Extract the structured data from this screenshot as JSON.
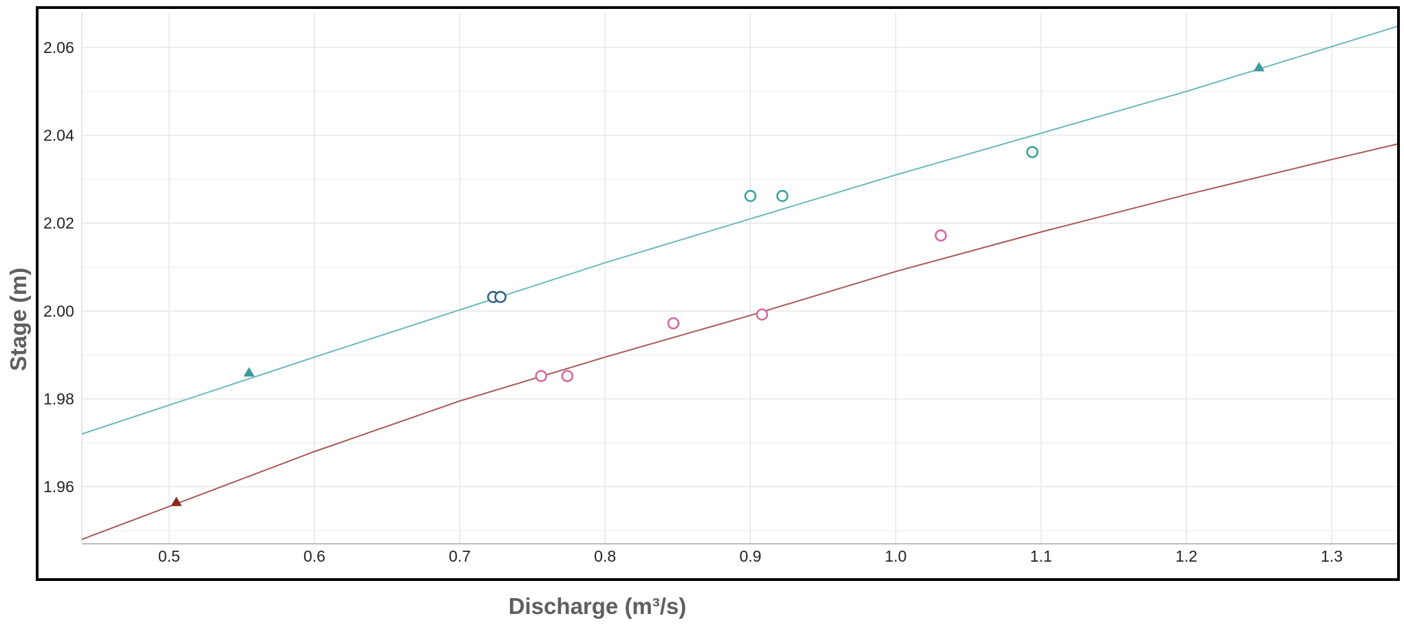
{
  "chart_data": {
    "type": "scatter",
    "xlabel": "Discharge (m³/s)",
    "ylabel": "Stage (m)",
    "xlim": [
      0.44,
      1.345
    ],
    "ylim": [
      1.947,
      2.068
    ],
    "x_ticks": [
      0.5,
      0.6,
      0.7,
      0.8,
      0.9,
      1.0,
      1.1,
      1.2,
      1.3
    ],
    "x_tick_labels": [
      "0.5",
      "0.6",
      "0.7",
      "0.8",
      "0.9",
      "1.0",
      "1.1",
      "1.2",
      "1.3"
    ],
    "y_ticks": [
      1.96,
      1.98,
      2.0,
      2.02,
      2.04,
      2.06
    ],
    "y_tick_labels": [
      "1.96",
      "1.98",
      "2.00",
      "2.02",
      "2.04",
      "2.06"
    ],
    "y_minor_ticks": [
      1.95,
      1.97,
      1.99,
      2.01,
      2.03,
      2.05
    ],
    "grid": true,
    "legend": "none",
    "series": [
      {
        "kind": "line",
        "color": "#6cb8bd",
        "x": [
          0.44,
          0.6,
          0.8,
          1.0,
          1.2,
          1.345
        ],
        "y": [
          1.972,
          1.9895,
          2.011,
          2.031,
          2.05,
          2.0648
        ]
      },
      {
        "kind": "line",
        "color": "#a85959",
        "x": [
          0.44,
          0.5,
          0.6,
          0.7,
          0.8,
          0.9,
          1.0,
          1.1,
          1.2,
          1.3,
          1.345
        ],
        "y": [
          1.948,
          1.9555,
          1.968,
          1.9795,
          1.9895,
          1.999,
          2.009,
          2.018,
          2.0265,
          2.0345,
          2.038
        ]
      },
      {
        "kind": "scatter",
        "marker": "triangle",
        "color": "#3a9a9c",
        "x": [
          0.555,
          1.25
        ],
        "y": [
          1.986,
          2.0555
        ]
      },
      {
        "kind": "scatter",
        "marker": "triangle",
        "color": "#8b2a1e",
        "x": [
          0.505
        ],
        "y": [
          1.9565
        ]
      },
      {
        "kind": "scatter",
        "marker": "open-circle",
        "color": "#2f5f8a",
        "x": [
          0.723,
          0.728
        ],
        "y": [
          2.0032,
          2.0032
        ]
      },
      {
        "kind": "scatter",
        "marker": "open-circle",
        "color": "#3aa39a",
        "x": [
          0.9,
          0.922,
          1.094
        ],
        "y": [
          2.0262,
          2.0262,
          2.0362
        ]
      },
      {
        "kind": "scatter",
        "marker": "open-circle",
        "color": "#d46a9f",
        "x": [
          0.756,
          0.774,
          0.847,
          0.908,
          1.031
        ],
        "y": [
          1.9852,
          1.9852,
          1.9972,
          1.9992,
          2.0172
        ]
      }
    ]
  }
}
